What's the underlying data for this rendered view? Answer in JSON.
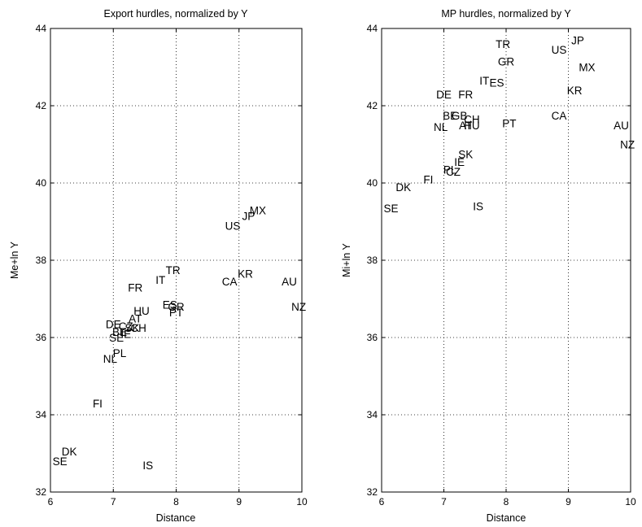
{
  "chart_data": [
    {
      "type": "scatter",
      "title": "Export hurdles, normalized by Y",
      "xlabel": "Distance",
      "ylabel": "Me+ln Y",
      "xlim": [
        6,
        10
      ],
      "ylim": [
        32,
        44
      ],
      "xticks": [
        "6",
        "7",
        "8",
        "9",
        "10"
      ],
      "yticks": [
        "32",
        "34",
        "36",
        "38",
        "40",
        "42",
        "44"
      ],
      "grid": true,
      "points": [
        {
          "label": "MX",
          "x": 9.3,
          "y": 39.3
        },
        {
          "label": "JP",
          "x": 9.15,
          "y": 39.15
        },
        {
          "label": "US",
          "x": 8.9,
          "y": 38.9
        },
        {
          "label": "TR",
          "x": 7.95,
          "y": 37.75
        },
        {
          "label": "IT",
          "x": 7.75,
          "y": 37.5
        },
        {
          "label": "FR",
          "x": 7.35,
          "y": 37.3
        },
        {
          "label": "KR",
          "x": 9.1,
          "y": 37.65
        },
        {
          "label": "CA",
          "x": 8.85,
          "y": 37.45
        },
        {
          "label": "AU",
          "x": 9.8,
          "y": 37.45
        },
        {
          "label": "NZ",
          "x": 9.95,
          "y": 36.8
        },
        {
          "label": "ES",
          "x": 7.9,
          "y": 36.85
        },
        {
          "label": "GR",
          "x": 8.0,
          "y": 36.8
        },
        {
          "label": "PT",
          "x": 8.0,
          "y": 36.65
        },
        {
          "label": "HU",
          "x": 7.45,
          "y": 36.7
        },
        {
          "label": "AT",
          "x": 7.35,
          "y": 36.5
        },
        {
          "label": "DE",
          "x": 7.0,
          "y": 36.35
        },
        {
          "label": "CZ",
          "x": 7.2,
          "y": 36.3
        },
        {
          "label": "SK",
          "x": 7.3,
          "y": 36.25
        },
        {
          "label": "CH",
          "x": 7.4,
          "y": 36.25
        },
        {
          "label": "BE",
          "x": 7.1,
          "y": 36.15
        },
        {
          "label": "IE",
          "x": 7.2,
          "y": 36.1
        },
        {
          "label": "SE",
          "x": 7.05,
          "y": 36.0
        },
        {
          "label": "PL",
          "x": 7.1,
          "y": 35.6
        },
        {
          "label": "NL",
          "x": 6.95,
          "y": 35.45
        },
        {
          "label": "FI",
          "x": 6.75,
          "y": 34.3
        },
        {
          "label": "DK",
          "x": 6.3,
          "y": 33.05
        },
        {
          "label": "SE",
          "x": 6.15,
          "y": 32.8
        },
        {
          "label": "IS",
          "x": 7.55,
          "y": 32.7
        }
      ]
    },
    {
      "type": "scatter",
      "title": "MP hurdles, normalized by Y",
      "xlabel": "Distance",
      "ylabel": "Mi+ln Y",
      "xlim": [
        6,
        10
      ],
      "ylim": [
        32,
        44
      ],
      "xticks": [
        "6",
        "7",
        "8",
        "9",
        "10"
      ],
      "yticks": [
        "32",
        "34",
        "36",
        "38",
        "40",
        "42",
        "44"
      ],
      "grid": true,
      "points": [
        {
          "label": "JP",
          "x": 9.15,
          "y": 43.7
        },
        {
          "label": "TR",
          "x": 7.95,
          "y": 43.6
        },
        {
          "label": "US",
          "x": 8.85,
          "y": 43.45
        },
        {
          "label": "GR",
          "x": 8.0,
          "y": 43.15
        },
        {
          "label": "MX",
          "x": 9.3,
          "y": 43.0
        },
        {
          "label": "IT",
          "x": 7.65,
          "y": 42.65
        },
        {
          "label": "ES",
          "x": 7.85,
          "y": 42.6
        },
        {
          "label": "KR",
          "x": 9.1,
          "y": 42.4
        },
        {
          "label": "DE",
          "x": 7.0,
          "y": 42.3
        },
        {
          "label": "FR",
          "x": 7.35,
          "y": 42.3
        },
        {
          "label": "CA",
          "x": 8.85,
          "y": 41.75
        },
        {
          "label": "BE",
          "x": 7.1,
          "y": 41.75
        },
        {
          "label": "GB",
          "x": 7.25,
          "y": 41.75
        },
        {
          "label": "CH",
          "x": 7.45,
          "y": 41.65
        },
        {
          "label": "PT",
          "x": 8.05,
          "y": 41.55
        },
        {
          "label": "AT",
          "x": 7.35,
          "y": 41.5
        },
        {
          "label": "HU",
          "x": 7.45,
          "y": 41.5
        },
        {
          "label": "AU",
          "x": 9.85,
          "y": 41.5
        },
        {
          "label": "NL",
          "x": 6.95,
          "y": 41.45
        },
        {
          "label": "NZ",
          "x": 9.95,
          "y": 41.0
        },
        {
          "label": "SK",
          "x": 7.35,
          "y": 40.75
        },
        {
          "label": "IE",
          "x": 7.25,
          "y": 40.55
        },
        {
          "label": "PL",
          "x": 7.1,
          "y": 40.35
        },
        {
          "label": "CZ",
          "x": 7.15,
          "y": 40.3
        },
        {
          "label": "FI",
          "x": 6.75,
          "y": 40.1
        },
        {
          "label": "DK",
          "x": 6.35,
          "y": 39.9
        },
        {
          "label": "IS",
          "x": 7.55,
          "y": 39.4
        },
        {
          "label": "SE",
          "x": 6.15,
          "y": 39.35
        }
      ]
    }
  ]
}
